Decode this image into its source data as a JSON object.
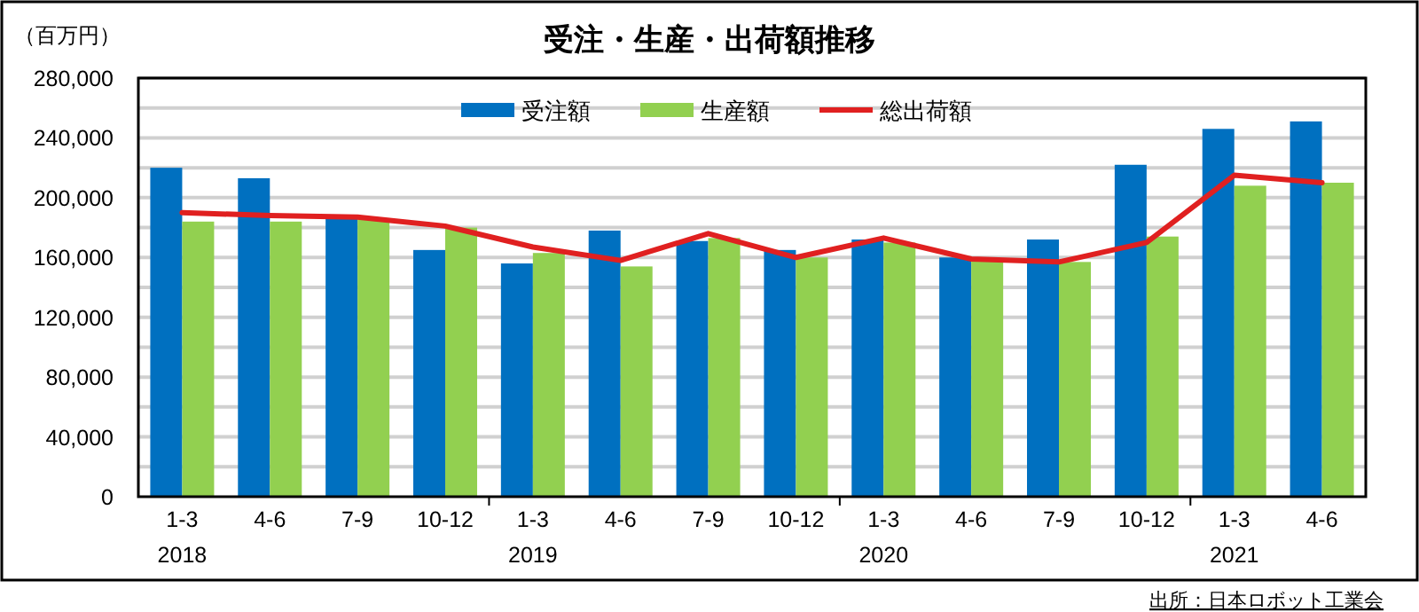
{
  "chart_data": {
    "type": "bar",
    "title": "受注・生産・出荷額推移",
    "ylabel": "（百万円）",
    "categories": [
      "1-3\n2018",
      "4-6",
      "7-9",
      "10-12",
      "1-3\n2019",
      "4-6",
      "7-9",
      "10-12",
      "1-3\n2020",
      "4-6",
      "7-9",
      "10-12",
      "1-3\n2021",
      "4-6"
    ],
    "series": [
      {
        "name": "受注額",
        "color": "#0070c0",
        "values": [
          220000,
          213000,
          188000,
          165000,
          156000,
          178000,
          171000,
          165000,
          172000,
          160000,
          172000,
          222000,
          246000,
          251000
        ]
      },
      {
        "name": "生産額",
        "color": "#92d050",
        "values": [
          184000,
          184000,
          186000,
          180000,
          163000,
          154000,
          173000,
          160000,
          170000,
          159000,
          157000,
          174000,
          208000,
          210000
        ]
      },
      {
        "name": "総出荷額",
        "type": "line",
        "color": "#e02020",
        "values": [
          190000,
          188000,
          187000,
          181000,
          167000,
          158000,
          176000,
          160000,
          173000,
          159000,
          157000,
          170000,
          215000,
          210000
        ]
      }
    ],
    "ylim": [
      0,
      280000
    ],
    "yticks": [
      {
        "value": 0,
        "label": "0"
      },
      {
        "value": 20000,
        "label": null
      },
      {
        "value": 40000,
        "label": "40,000"
      },
      {
        "value": 60000,
        "label": null
      },
      {
        "value": 80000,
        "label": "80,000"
      },
      {
        "value": 100000,
        "label": null
      },
      {
        "value": 120000,
        "label": "120,000"
      },
      {
        "value": 140000,
        "label": null
      },
      {
        "value": 160000,
        "label": "160,000"
      },
      {
        "value": 180000,
        "label": null
      },
      {
        "value": 200000,
        "label": "200,000"
      },
      {
        "value": 220000,
        "label": null
      },
      {
        "value": 240000,
        "label": "240,000"
      },
      {
        "value": 260000,
        "label": null
      },
      {
        "value": 280000,
        "label": "280,000"
      }
    ],
    "grid": "y",
    "legend": "top",
    "annotations": [
      "出所：日本ロボット工業会"
    ]
  }
}
